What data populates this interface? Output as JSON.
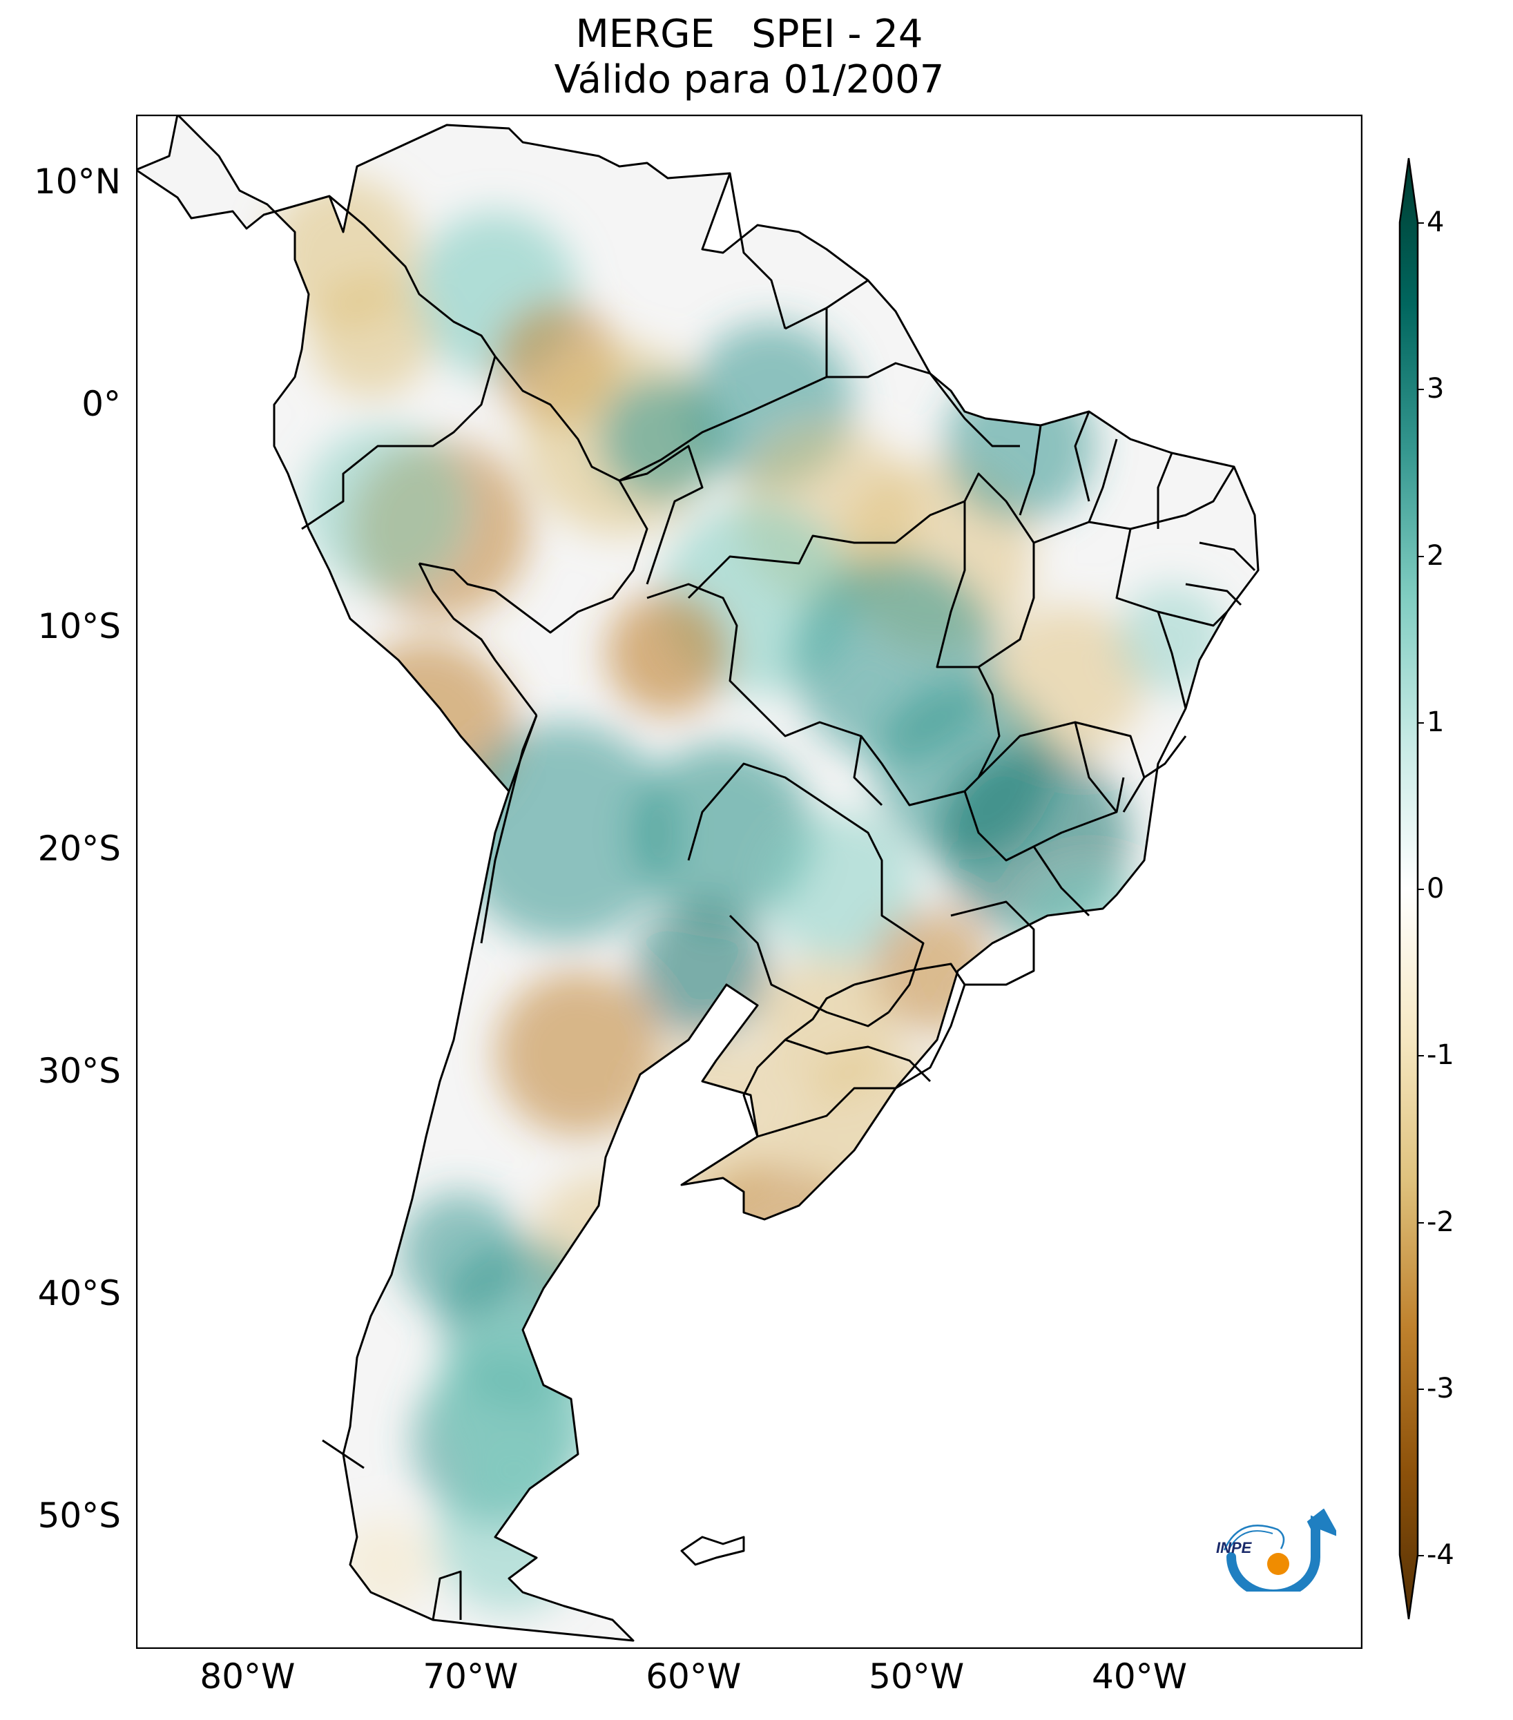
{
  "title": {
    "line1": "MERGE   SPEI - 24",
    "line2": "Válido para 01/2007"
  },
  "axes": {
    "lat_labels": [
      "10°N",
      "0°",
      "10°S",
      "20°S",
      "30°S",
      "40°S",
      "50°S"
    ],
    "lon_labels": [
      "80°W",
      "70°W",
      "60°W",
      "50°W",
      "40°W"
    ],
    "lat_values": [
      10,
      0,
      -10,
      -20,
      -30,
      -40,
      -50
    ],
    "lon_values": [
      -80,
      -70,
      -60,
      -50,
      -40
    ],
    "lon_range": [
      -85,
      -30
    ],
    "lat_range": [
      -56,
      13
    ]
  },
  "colorbar": {
    "ticks": [
      "4",
      "3",
      "2",
      "1",
      "0",
      "-1",
      "-2",
      "-3",
      "-4"
    ],
    "values": [
      4,
      3,
      2,
      1,
      0,
      -1,
      -2,
      -3,
      -4
    ],
    "range": [
      -4,
      4
    ],
    "extend": "both",
    "colormap": "BrBG",
    "colors": {
      "wet_max": "#003c30",
      "wet_high": "#01665e",
      "wet_mid": "#35978f",
      "wet_low": "#80cdc1",
      "wet_faint": "#c7eae5",
      "neutral": "#f5f5f5",
      "dry_faint": "#f6e8c3",
      "dry_low": "#dfc27d",
      "dry_mid": "#bf812d",
      "dry_high": "#8c510a",
      "dry_max": "#543005"
    }
  },
  "logo": {
    "text": "INPE",
    "colors": {
      "arc": "#1f7fc1",
      "dot": "#f08c00"
    }
  }
}
